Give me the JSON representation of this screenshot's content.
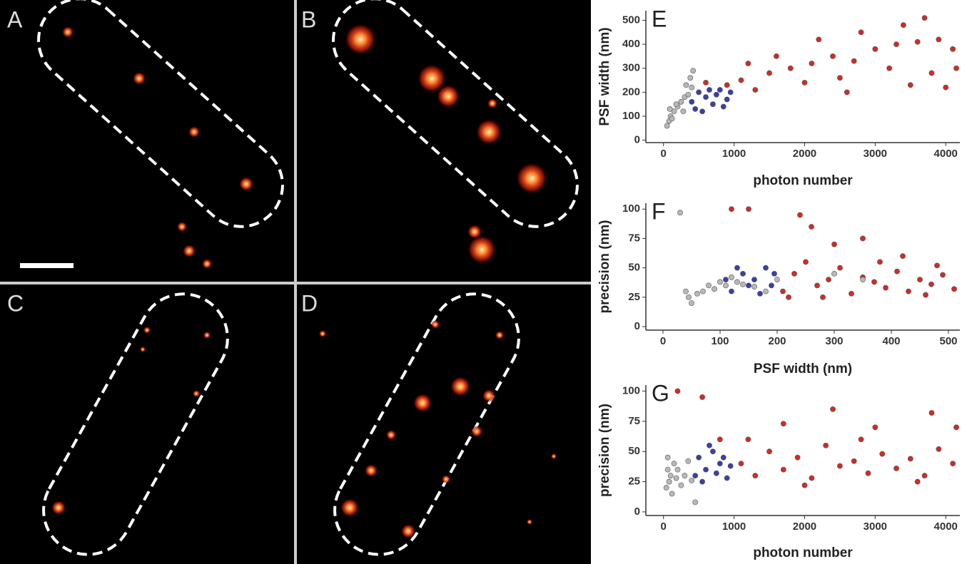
{
  "image_panels": [
    {
      "label": "A"
    },
    {
      "label": "B"
    },
    {
      "label": "C"
    },
    {
      "label": "D"
    }
  ],
  "chart_data": [
    {
      "type": "scatter",
      "title": "E",
      "x_label": "photon number",
      "y_label": "PSF width (nm)",
      "xlim": [
        -250,
        4200
      ],
      "ylim": [
        -10,
        540
      ],
      "xticks": [
        0,
        1000,
        2000,
        3000,
        4000
      ],
      "yticks": [
        0,
        100,
        200,
        300,
        400,
        500
      ],
      "series": [
        {
          "color": "#d42a25",
          "x": [
            1100,
            1500,
            1800,
            2100,
            2400,
            2700,
            3000,
            3300,
            3600,
            3900,
            4100,
            1300,
            2000,
            2500,
            3200,
            3800,
            4000,
            1600,
            2200,
            2800,
            3400,
            3700,
            1200,
            2600,
            3500,
            4150,
            900,
            600
          ],
          "values": [
            250,
            280,
            300,
            320,
            350,
            330,
            380,
            400,
            410,
            420,
            380,
            210,
            240,
            260,
            300,
            280,
            220,
            350,
            420,
            450,
            480,
            510,
            320,
            200,
            230,
            300,
            230,
            240
          ]
        },
        {
          "color": "#3b3fa8",
          "x": [
            400,
            500,
            600,
            700,
            800,
            900,
            450,
            550,
            650,
            750,
            850,
            950
          ],
          "values": [
            160,
            200,
            180,
            150,
            210,
            170,
            130,
            120,
            210,
            190,
            140,
            200
          ]
        },
        {
          "color": "#b8b8b8",
          "x": [
            50,
            80,
            100,
            150,
            200,
            250,
            300,
            350,
            400,
            120,
            180,
            280,
            380,
            420,
            90,
            320
          ],
          "values": [
            60,
            80,
            100,
            120,
            140,
            160,
            180,
            190,
            220,
            90,
            150,
            120,
            260,
            290,
            130,
            230
          ]
        }
      ]
    },
    {
      "type": "scatter",
      "title": "F",
      "x_label": "PSF width (nm)",
      "y_label": "precision (nm)",
      "xlim": [
        -30,
        520
      ],
      "ylim": [
        -3,
        105
      ],
      "xticks": [
        0,
        100,
        200,
        300,
        400,
        500
      ],
      "yticks": [
        0,
        25,
        50,
        75,
        100
      ],
      "series": [
        {
          "color": "#d42a25",
          "x": [
            210,
            230,
            250,
            270,
            290,
            310,
            330,
            350,
            370,
            390,
            410,
            430,
            450,
            470,
            490,
            510,
            260,
            300,
            240,
            350,
            420,
            480,
            150,
            120,
            220,
            280,
            380,
            460
          ],
          "values": [
            30,
            45,
            55,
            35,
            40,
            50,
            28,
            42,
            38,
            33,
            47,
            30,
            40,
            36,
            44,
            32,
            85,
            70,
            95,
            75,
            60,
            52,
            100,
            100,
            25,
            25,
            55,
            27
          ]
        },
        {
          "color": "#3b3fa8",
          "x": [
            120,
            140,
            160,
            180,
            190,
            130,
            170,
            150,
            195,
            110
          ],
          "values": [
            30,
            45,
            40,
            50,
            35,
            50,
            28,
            35,
            45,
            40
          ]
        },
        {
          "color": "#b8b8b8",
          "x": [
            30,
            40,
            50,
            60,
            70,
            80,
            90,
            100,
            110,
            120,
            130,
            140,
            45,
            160,
            180,
            200,
            300,
            350
          ],
          "values": [
            97,
            30,
            20,
            28,
            30,
            35,
            32,
            38,
            35,
            42,
            38,
            36,
            25,
            34,
            30,
            40,
            45,
            40
          ]
        }
      ]
    },
    {
      "type": "scatter",
      "title": "G",
      "x_label": "photon number",
      "y_label": "precision (nm)",
      "xlim": [
        -250,
        4200
      ],
      "ylim": [
        -3,
        105
      ],
      "xticks": [
        0,
        1000,
        2000,
        3000,
        4000
      ],
      "yticks": [
        0,
        25,
        50,
        75,
        100
      ],
      "series": [
        {
          "color": "#d42a25",
          "x": [
            1100,
            1300,
            1500,
            1700,
            1900,
            2100,
            2300,
            2500,
            2700,
            2900,
            3100,
            3300,
            3500,
            3700,
            3900,
            4100,
            2400,
            3800,
            1700,
            3000,
            550,
            200,
            1200,
            2000,
            3600,
            4150,
            800,
            2800
          ],
          "values": [
            40,
            30,
            50,
            35,
            45,
            28,
            55,
            38,
            42,
            32,
            48,
            36,
            44,
            30,
            52,
            40,
            85,
            82,
            73,
            70,
            95,
            100,
            60,
            22,
            25,
            70,
            60,
            60
          ]
        },
        {
          "color": "#3b3fa8",
          "x": [
            450,
            500,
            600,
            700,
            800,
            900,
            550,
            650,
            750,
            850,
            950
          ],
          "values": [
            30,
            45,
            35,
            50,
            40,
            28,
            25,
            55,
            32,
            45,
            38
          ]
        },
        {
          "color": "#b8b8b8",
          "x": [
            40,
            60,
            80,
            100,
            120,
            150,
            180,
            200,
            250,
            300,
            350,
            400,
            450,
            60
          ],
          "values": [
            20,
            35,
            25,
            30,
            15,
            40,
            28,
            35,
            22,
            30,
            42,
            26,
            8,
            45
          ]
        }
      ]
    }
  ]
}
